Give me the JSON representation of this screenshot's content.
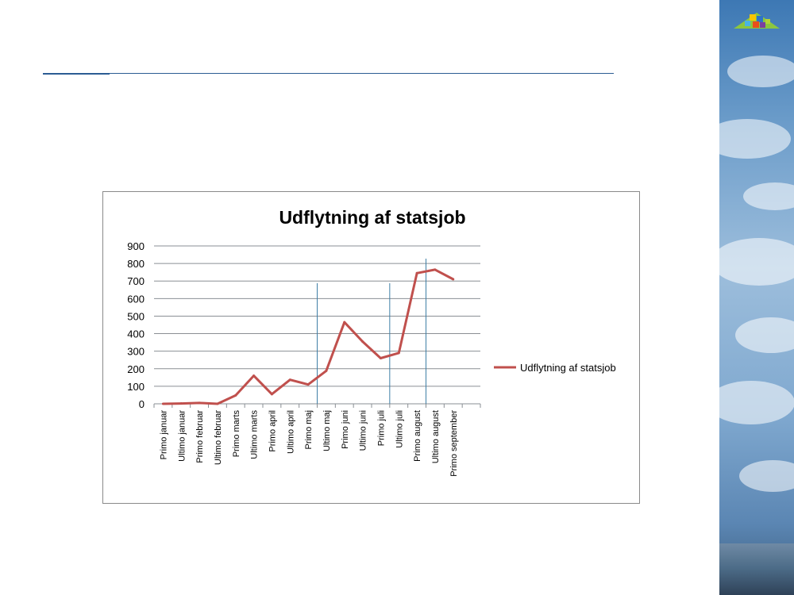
{
  "colors": {
    "series_line": "#c0504d",
    "gridline": "#8a8f94",
    "vertical_marker": "#3f7fa6",
    "header_rule": "#2b5c93"
  },
  "logo": {
    "icon": "colorful-houses-logo-icon"
  },
  "chart_data": {
    "type": "line",
    "title": "Udflytning af statsjob",
    "xlabel": "",
    "ylabel": "",
    "ylim": [
      0,
      900
    ],
    "yticks": [
      "0",
      "100",
      "200",
      "300",
      "400",
      "500",
      "600",
      "700",
      "800",
      "900"
    ],
    "grid": true,
    "legend": "right",
    "categories": [
      "Primo januar",
      "Ultimo januar",
      "Primo februar",
      "Ultimo februar",
      "Primo marts",
      "Ultimo marts",
      "Primo april",
      "Ultimo april",
      "Primo maj",
      "Ultimo maj",
      "Primo juni",
      "Ultimo juni",
      "Primo juli",
      "Ultimo juli",
      "Primo august",
      "Ultimo august",
      "Primo september"
    ],
    "series": [
      {
        "name": "Udflytning af statsjob",
        "values": [
          0,
          2,
          5,
          0,
          48,
          160,
          55,
          137,
          110,
          188,
          465,
          355,
          260,
          290,
          745,
          765,
          710
        ]
      }
    ],
    "vertical_markers_after": [
      "Primo maj",
      "Primo juli",
      "Primo august"
    ]
  }
}
